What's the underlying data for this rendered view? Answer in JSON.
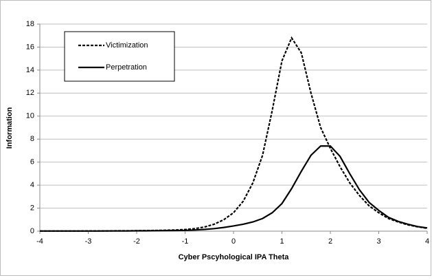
{
  "chart_data": {
    "type": "line",
    "xlabel": "Cyber Pscyhological IPA Theta",
    "ylabel": "Information",
    "x": [
      -4,
      -3.8,
      -3.6,
      -3.4,
      -3.2,
      -3,
      -2.8,
      -2.6,
      -2.4,
      -2.2,
      -2,
      -1.8,
      -1.6,
      -1.4,
      -1.2,
      -1,
      -0.8,
      -0.6,
      -0.4,
      -0.2,
      0,
      0.2,
      0.4,
      0.6,
      0.8,
      1,
      1.2,
      1.4,
      1.6,
      1.8,
      2,
      2.2,
      2.4,
      2.6,
      2.8,
      3,
      3.2,
      3.4,
      3.6,
      3.8,
      4
    ],
    "series": [
      {
        "name": "Victimization",
        "color": "#000000",
        "linestyle": "dashed",
        "values": [
          0.01,
          0.01,
          0.01,
          0.01,
          0.01,
          0.02,
          0.02,
          0.02,
          0.03,
          0.03,
          0.04,
          0.05,
          0.06,
          0.08,
          0.1,
          0.14,
          0.22,
          0.36,
          0.6,
          1.0,
          1.6,
          2.6,
          4.2,
          6.6,
          10.5,
          14.8,
          16.8,
          15.5,
          12,
          9,
          7.2,
          5.6,
          4.2,
          3.1,
          2.2,
          1.6,
          1.1,
          0.8,
          0.55,
          0.38,
          0.25
        ]
      },
      {
        "name": "Perpetration",
        "color": "#000000",
        "linestyle": "solid",
        "values": [
          0.01,
          0.01,
          0.01,
          0.01,
          0.01,
          0.01,
          0.01,
          0.02,
          0.02,
          0.02,
          0.03,
          0.03,
          0.04,
          0.05,
          0.06,
          0.07,
          0.1,
          0.15,
          0.22,
          0.32,
          0.45,
          0.6,
          0.8,
          1.1,
          1.6,
          2.4,
          3.7,
          5.2,
          6.6,
          7.4,
          7.4,
          6.5,
          5.0,
          3.6,
          2.5,
          1.8,
          1.2,
          0.85,
          0.6,
          0.4,
          0.28
        ]
      }
    ],
    "xlim": [
      -4,
      4
    ],
    "xticks": [
      -4,
      -3,
      -2,
      -1,
      0,
      1,
      2,
      3,
      4
    ],
    "ylim": [
      0,
      18
    ],
    "yticks": [
      0,
      2,
      4,
      6,
      8,
      10,
      12,
      14,
      16,
      18
    ],
    "grid": true,
    "legend": "upper left"
  }
}
